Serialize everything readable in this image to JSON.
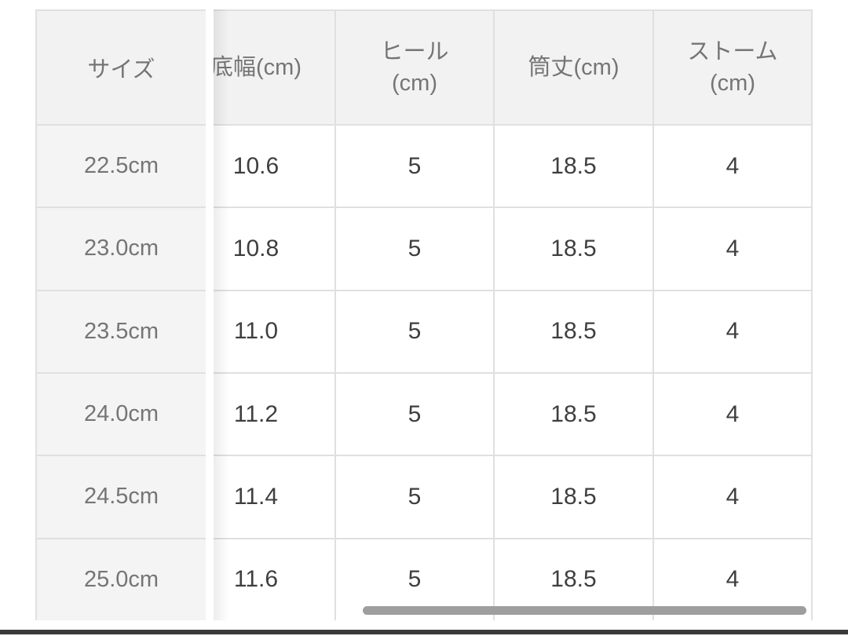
{
  "table": {
    "columns": [
      {
        "label": "サイズ"
      },
      {
        "label": "底幅(cm)"
      },
      {
        "label": "ヒール\n(cm)"
      },
      {
        "label": "筒丈(cm)"
      },
      {
        "label": "ストーム\n(cm)"
      }
    ],
    "rows": [
      {
        "size": "22.5cm",
        "values": [
          "10.6",
          "5",
          "18.5",
          "4"
        ]
      },
      {
        "size": "23.0cm",
        "values": [
          "10.8",
          "5",
          "18.5",
          "4"
        ]
      },
      {
        "size": "23.5cm",
        "values": [
          "11.0",
          "5",
          "18.5",
          "4"
        ]
      },
      {
        "size": "24.0cm",
        "values": [
          "11.2",
          "5",
          "18.5",
          "4"
        ]
      },
      {
        "size": "24.5cm",
        "values": [
          "11.4",
          "5",
          "18.5",
          "4"
        ]
      },
      {
        "size": "25.0cm",
        "values": [
          "11.6",
          "5",
          "18.5",
          "4"
        ]
      }
    ]
  },
  "colors": {
    "page_bg": "#ffffff",
    "header_bg": "#f2f2f2",
    "sticky_col_bg": "#f4f4f4",
    "border": "#e0e0e0",
    "header_text": "#757575",
    "size_text": "#757575",
    "value_text": "#3f3f3f",
    "scrollbar": "#9e9e9e",
    "bottom_bar": "#3a3a3a"
  }
}
